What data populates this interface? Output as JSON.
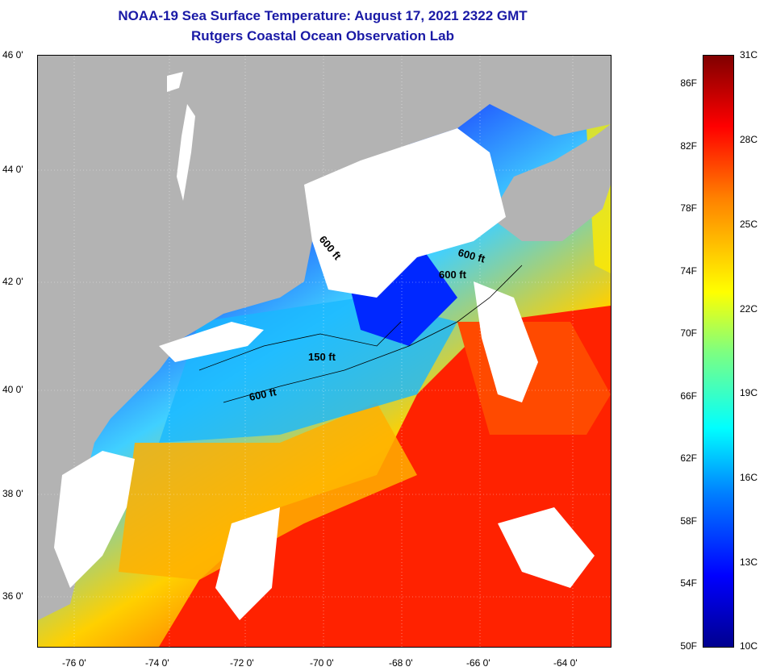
{
  "title": {
    "line1": "NOAA-19 Sea Surface Temperature:  August 17, 2021 2322 GMT",
    "line2": "Rutgers Coastal Ocean Observation Lab"
  },
  "map": {
    "lat_labels": [
      "46 0'",
      "44 0'",
      "42 0'",
      "40 0'",
      "38 0'",
      "36 0'"
    ],
    "lon_labels": [
      "-76 0'",
      "-74 0'",
      "-72 0'",
      "-70 0'",
      "-68 0'",
      "-66 0'",
      "-64 0'"
    ],
    "contour_labels": [
      "600 ft",
      "600 ft",
      "600 ft",
      "150 ft",
      "600 ft"
    ],
    "colors": {
      "land": "#b3b3b3",
      "cloud": "#ffffff",
      "ocean_warm": "#ff2000",
      "ocean_mid": "#ffcc00",
      "ocean_cool": "#00c0ff",
      "ocean_cold": "#0030ff"
    }
  },
  "colorbar": {
    "fahrenheit": [
      "86F",
      "82F",
      "78F",
      "74F",
      "70F",
      "66F",
      "62F",
      "58F",
      "54F",
      "50F"
    ],
    "celsius": [
      "31C",
      "28C",
      "25C",
      "22C",
      "19C",
      "16C",
      "13C",
      "10C"
    ]
  }
}
